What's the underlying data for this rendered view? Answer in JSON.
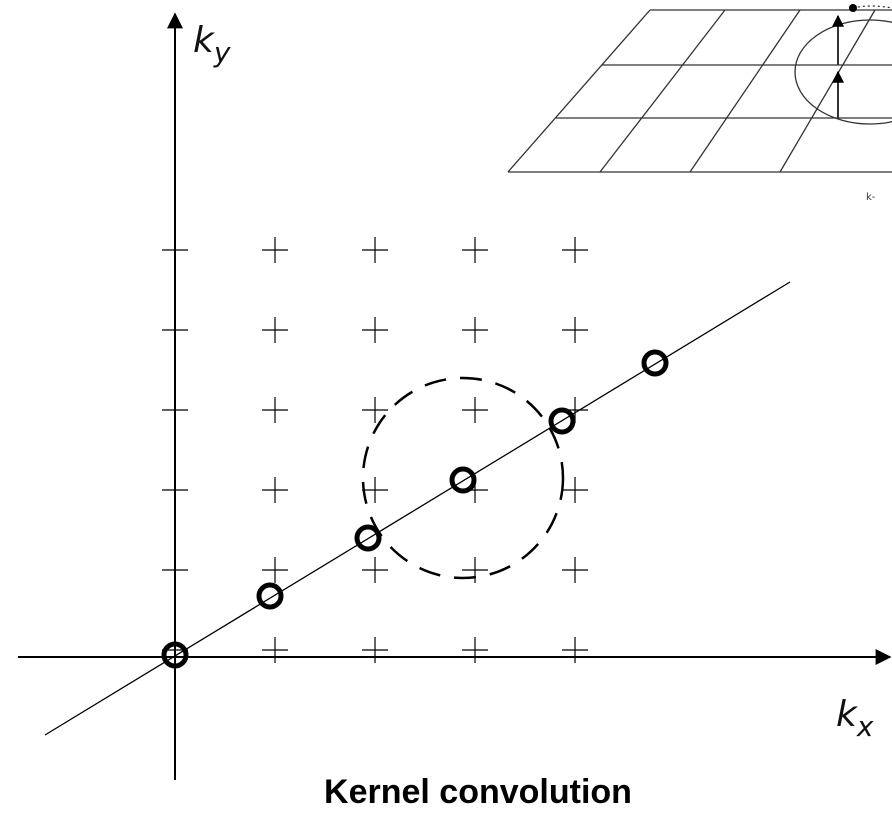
{
  "axes": {
    "y_label": {
      "base": "k",
      "sub": "y"
    },
    "x_label": {
      "base": "k",
      "sub": "x"
    }
  },
  "inset": {
    "label": "k-"
  },
  "caption": "Kernel convolution"
}
